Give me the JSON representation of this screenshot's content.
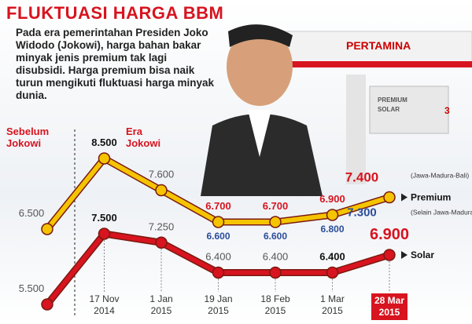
{
  "chart_data": {
    "type": "line",
    "title": "FLUKTUASI HARGA BBM",
    "description": "Pada era pemerintahan Presiden Joko Widodo (Jokowi), harga bahan bakar minyak jenis premium tak lagi disubsidi. Harga premium bisa naik turun mengikuti fluktuasi harga minyak dunia.",
    "annotations": [
      "Sebelum Jokowi",
      "Era Jokowi"
    ],
    "scene_text": {
      "sign": "PERTAMINA",
      "pump_labels": [
        "PREMIUM",
        "SOLAR"
      ],
      "pump_number": "3"
    },
    "categories": [
      null,
      "17 Nov 2014",
      "1 Jan 2015",
      "19 Jan 2015",
      "18 Feb 2015",
      "1 Mar 2015",
      "28 Mar 2015"
    ],
    "series": [
      {
        "name": "Premium",
        "note": "(Jawa-Madura-Bali)",
        "color": "#f5c400",
        "values": [
          6500,
          8500,
          7600,
          6700,
          6700,
          6900,
          7400
        ],
        "value_labels": [
          "6.500",
          "8.500",
          "7.600",
          "6.700",
          "6.700",
          "6.900",
          "7.400"
        ]
      },
      {
        "name": "Solar",
        "color": "#d7141f",
        "values": [
          5500,
          7500,
          7250,
          6400,
          6400,
          6400,
          6900
        ],
        "value_labels": [
          "5.500",
          "7.500",
          "7.250",
          "6.400",
          "6.400",
          "6.400",
          "6.900"
        ]
      }
    ],
    "regional_prices": {
      "note": "(Selain Jawa-Madura-Bali)",
      "color": "#2b4d9a",
      "values": [
        null,
        null,
        null,
        6600,
        6600,
        6800,
        7300
      ],
      "value_labels": [
        null,
        null,
        null,
        "6.600",
        "6.600",
        "6.800",
        "7.300"
      ]
    }
  }
}
